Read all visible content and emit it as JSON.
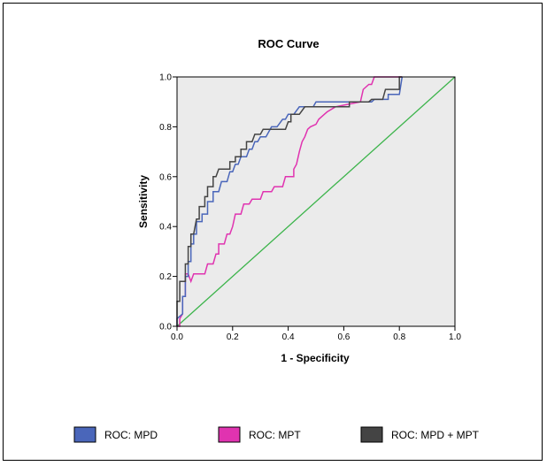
{
  "chart_data": {
    "type": "line",
    "title": "ROC Curve",
    "xlabel": "1 - Specificity",
    "ylabel": "Sensitivity",
    "xlim": [
      0,
      1
    ],
    "ylim": [
      0,
      1
    ],
    "xticks": [
      "0.0",
      "0.2",
      "0.4",
      "0.6",
      "0.8",
      "1.0"
    ],
    "yticks": [
      "0.0",
      "0.2",
      "0.4",
      "0.6",
      "0.8",
      "1.0"
    ],
    "grid": false,
    "legend_position": "bottom",
    "plot_background": "#ebebeb",
    "series": [
      {
        "name": "ROC: MPD",
        "color": "#4a66ba",
        "points": [
          [
            0,
            0
          ],
          [
            0,
            0.03
          ],
          [
            0.02,
            0.05
          ],
          [
            0.02,
            0.12
          ],
          [
            0.03,
            0.12
          ],
          [
            0.03,
            0.2
          ],
          [
            0.04,
            0.2
          ],
          [
            0.04,
            0.26
          ],
          [
            0.05,
            0.26
          ],
          [
            0.05,
            0.33
          ],
          [
            0.06,
            0.33
          ],
          [
            0.06,
            0.37
          ],
          [
            0.07,
            0.37
          ],
          [
            0.07,
            0.42
          ],
          [
            0.09,
            0.42
          ],
          [
            0.09,
            0.45
          ],
          [
            0.11,
            0.45
          ],
          [
            0.11,
            0.5
          ],
          [
            0.13,
            0.5
          ],
          [
            0.13,
            0.54
          ],
          [
            0.15,
            0.54
          ],
          [
            0.16,
            0.58
          ],
          [
            0.18,
            0.58
          ],
          [
            0.19,
            0.62
          ],
          [
            0.2,
            0.62
          ],
          [
            0.21,
            0.65
          ],
          [
            0.22,
            0.65
          ],
          [
            0.23,
            0.68
          ],
          [
            0.25,
            0.68
          ],
          [
            0.26,
            0.71
          ],
          [
            0.27,
            0.71
          ],
          [
            0.28,
            0.74
          ],
          [
            0.29,
            0.74
          ],
          [
            0.3,
            0.76
          ],
          [
            0.32,
            0.76
          ],
          [
            0.34,
            0.8
          ],
          [
            0.36,
            0.8
          ],
          [
            0.38,
            0.83
          ],
          [
            0.39,
            0.83
          ],
          [
            0.4,
            0.85
          ],
          [
            0.42,
            0.85
          ],
          [
            0.44,
            0.88
          ],
          [
            0.49,
            0.88
          ],
          [
            0.5,
            0.9
          ],
          [
            0.7,
            0.9
          ],
          [
            0.71,
            0.91
          ],
          [
            0.76,
            0.91
          ],
          [
            0.76,
            0.93
          ],
          [
            0.8,
            0.93
          ],
          [
            0.81,
            1.0
          ]
        ]
      },
      {
        "name": "ROC: MPT",
        "color": "#e033b0",
        "points": [
          [
            0,
            0
          ],
          [
            0.01,
            0
          ],
          [
            0.01,
            0.03
          ],
          [
            0.02,
            0.05
          ],
          [
            0.02,
            0.12
          ],
          [
            0.03,
            0.12
          ],
          [
            0.03,
            0.21
          ],
          [
            0.04,
            0.21
          ],
          [
            0.05,
            0.18
          ],
          [
            0.06,
            0.21
          ],
          [
            0.1,
            0.21
          ],
          [
            0.11,
            0.25
          ],
          [
            0.13,
            0.25
          ],
          [
            0.14,
            0.29
          ],
          [
            0.15,
            0.29
          ],
          [
            0.15,
            0.33
          ],
          [
            0.17,
            0.33
          ],
          [
            0.18,
            0.37
          ],
          [
            0.19,
            0.37
          ],
          [
            0.2,
            0.4
          ],
          [
            0.21,
            0.45
          ],
          [
            0.23,
            0.45
          ],
          [
            0.24,
            0.49
          ],
          [
            0.26,
            0.49
          ],
          [
            0.27,
            0.51
          ],
          [
            0.3,
            0.51
          ],
          [
            0.31,
            0.54
          ],
          [
            0.34,
            0.54
          ],
          [
            0.35,
            0.56
          ],
          [
            0.38,
            0.56
          ],
          [
            0.39,
            0.6
          ],
          [
            0.42,
            0.6
          ],
          [
            0.42,
            0.63
          ],
          [
            0.43,
            0.65
          ],
          [
            0.44,
            0.7
          ],
          [
            0.45,
            0.74
          ],
          [
            0.46,
            0.76
          ],
          [
            0.47,
            0.79
          ],
          [
            0.48,
            0.8
          ],
          [
            0.5,
            0.81
          ],
          [
            0.51,
            0.83
          ],
          [
            0.53,
            0.85
          ],
          [
            0.54,
            0.86
          ],
          [
            0.57,
            0.88
          ],
          [
            0.66,
            0.9
          ],
          [
            0.67,
            0.95
          ],
          [
            0.69,
            0.97
          ],
          [
            0.7,
            0.97
          ],
          [
            0.71,
            1.0
          ],
          [
            0.81,
            1.0
          ]
        ]
      },
      {
        "name": "ROC: MPD + MPT",
        "color": "#444444",
        "points": [
          [
            0,
            0
          ],
          [
            0,
            0.1
          ],
          [
            0.01,
            0.1
          ],
          [
            0.01,
            0.18
          ],
          [
            0.03,
            0.18
          ],
          [
            0.03,
            0.25
          ],
          [
            0.04,
            0.25
          ],
          [
            0.04,
            0.32
          ],
          [
            0.05,
            0.32
          ],
          [
            0.05,
            0.37
          ],
          [
            0.06,
            0.37
          ],
          [
            0.07,
            0.43
          ],
          [
            0.08,
            0.43
          ],
          [
            0.08,
            0.48
          ],
          [
            0.1,
            0.48
          ],
          [
            0.1,
            0.52
          ],
          [
            0.11,
            0.52
          ],
          [
            0.11,
            0.56
          ],
          [
            0.13,
            0.56
          ],
          [
            0.13,
            0.6
          ],
          [
            0.14,
            0.6
          ],
          [
            0.15,
            0.63
          ],
          [
            0.19,
            0.63
          ],
          [
            0.19,
            0.66
          ],
          [
            0.21,
            0.66
          ],
          [
            0.21,
            0.68
          ],
          [
            0.23,
            0.68
          ],
          [
            0.23,
            0.71
          ],
          [
            0.25,
            0.71
          ],
          [
            0.25,
            0.74
          ],
          [
            0.27,
            0.74
          ],
          [
            0.28,
            0.77
          ],
          [
            0.3,
            0.77
          ],
          [
            0.31,
            0.79
          ],
          [
            0.39,
            0.79
          ],
          [
            0.4,
            0.82
          ],
          [
            0.41,
            0.82
          ],
          [
            0.41,
            0.85
          ],
          [
            0.44,
            0.85
          ],
          [
            0.46,
            0.88
          ],
          [
            0.62,
            0.88
          ],
          [
            0.62,
            0.9
          ],
          [
            0.69,
            0.9
          ],
          [
            0.7,
            0.91
          ],
          [
            0.74,
            0.91
          ],
          [
            0.75,
            0.95
          ],
          [
            0.8,
            0.95
          ],
          [
            0.8,
            1.0
          ],
          [
            0.81,
            1.0
          ]
        ]
      },
      {
        "name": "",
        "color": "#3cb44b",
        "points": [
          [
            0,
            0
          ],
          [
            1,
            1
          ]
        ]
      }
    ]
  },
  "legend": [
    {
      "label": "ROC: MPD",
      "color": "#4a66ba"
    },
    {
      "label": "ROC: MPT",
      "color": "#e033b0"
    },
    {
      "label": "ROC: MPD + MPT",
      "color": "#444444"
    }
  ]
}
